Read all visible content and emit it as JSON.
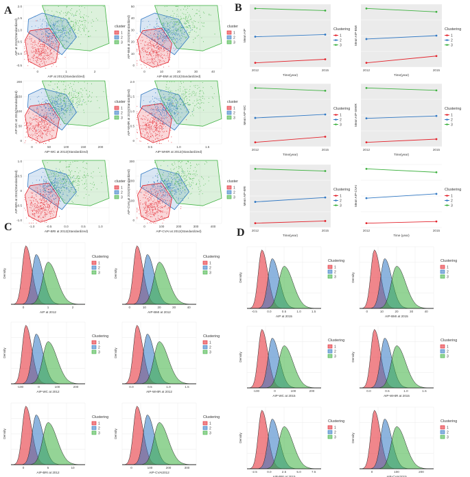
{
  "figure": {
    "panel_labels": [
      "A",
      "B",
      "C",
      "D"
    ],
    "colors": {
      "c1": "#e3222b",
      "c2": "#2f77c3",
      "c3": "#3db13f",
      "grid": "#ebebeb",
      "panelB_bg": "#ebebeb"
    }
  },
  "chart_data": [
    {
      "panel": "A",
      "type": "scatter",
      "legend_title": "cluster",
      "legend_entries": [
        "1",
        "2",
        "3"
      ],
      "subplots": [
        {
          "xlabel": "AIP at 2012(Standardized)",
          "ylabel": "AIP at 2015(Standardized)",
          "xticks": [
            "0",
            "1",
            "2"
          ],
          "yticks": [
            "2.0",
            "1.5",
            "1.0",
            "0.5",
            "0.0",
            "-0.5"
          ]
        },
        {
          "xlabel": "AIP-BMI at 2012(Standardized)",
          "ylabel": "AIP-BMI at 2015(Standardized)",
          "xticks": [
            "0",
            "10",
            "20",
            "30",
            "40"
          ],
          "yticks": [
            "50",
            "40",
            "30",
            "20",
            "10",
            "0"
          ]
        },
        {
          "xlabel": "AIP-WC at 2012(Standardized)",
          "ylabel": "AIP-WC at 2015(Standardized)",
          "xticks": [
            "0",
            "50",
            "100",
            "150",
            "200"
          ],
          "yticks": [
            "200",
            "150",
            "100",
            "50",
            "0"
          ]
        },
        {
          "xlabel": "AIP-WHtR at 2012(Standardized)",
          "ylabel": "AIP-WHtR at 2015(Standardized)",
          "xticks": [
            "0.5",
            "1.0",
            "1.5"
          ],
          "yticks": [
            "2.0",
            "1.5",
            "1.0",
            "0.5",
            "0"
          ]
        },
        {
          "xlabel": "AIP-BRI at 2012(Standardized)",
          "ylabel": "AIP-BRI at 2015(Standardized)",
          "xticks": [
            "-1.0",
            "-0.5",
            "0.0",
            "0.5",
            "1.0"
          ],
          "yticks": [
            "1.0",
            "0.5",
            "0",
            "-0.5",
            "-1.0"
          ]
        },
        {
          "xlabel": "AIP-CVAI at 2012(Standardized)",
          "ylabel": "AIP-CVAI at 2015(Standardized)",
          "xticks": [
            "0",
            "100",
            "200",
            "300",
            "400"
          ],
          "yticks": [
            "300",
            "200",
            "100",
            "0"
          ]
        }
      ]
    },
    {
      "panel": "B",
      "type": "line",
      "legend_title": "Clustering",
      "legend_entries": [
        "1",
        "2",
        "3"
      ],
      "x": [
        "2012",
        "2015"
      ],
      "subplots": [
        {
          "xlabel": "Time(year)",
          "ylabel": "Mean AIP",
          "series": [
            {
              "name": "1",
              "values": [
                0.05,
                0.1
              ]
            },
            {
              "name": "2",
              "values": [
                0.42,
                0.45
              ]
            },
            {
              "name": "3",
              "values": [
                0.82,
                0.79
              ]
            }
          ]
        },
        {
          "xlabel": "Time(year)",
          "ylabel": "Mean AIP-BMI",
          "series": [
            {
              "name": "1",
              "values": [
                5,
                7
              ]
            },
            {
              "name": "2",
              "values": [
                12,
                13
              ]
            },
            {
              "name": "3",
              "values": [
                21,
                20
              ]
            }
          ]
        },
        {
          "xlabel": "Time(year)",
          "ylabel": "Mean AIP-WC",
          "series": [
            {
              "name": "1",
              "values": [
                10,
                18
              ]
            },
            {
              "name": "2",
              "values": [
                45,
                50
              ]
            },
            {
              "name": "3",
              "values": [
                88,
                84
              ]
            }
          ]
        },
        {
          "xlabel": "Time(year)",
          "ylabel": "Mean AIP-WHtR",
          "series": [
            {
              "name": "1",
              "values": [
                0.1,
                0.14
              ]
            },
            {
              "name": "2",
              "values": [
                0.4,
                0.43
              ]
            },
            {
              "name": "3",
              "values": [
                0.78,
                0.75
              ]
            }
          ]
        },
        {
          "xlabel": "Time(year)",
          "ylabel": "Mean AIP-BRI",
          "series": [
            {
              "name": "1",
              "values": [
                0.06,
                0.09
              ]
            },
            {
              "name": "2",
              "values": [
                0.35,
                0.41
              ]
            },
            {
              "name": "3",
              "values": [
                0.8,
                0.77
              ]
            }
          ]
        },
        {
          "xlabel": "Time (year)",
          "ylabel": "Mean AIP-CVAI",
          "series": [
            {
              "name": "1",
              "values": [
                10,
                14
              ]
            },
            {
              "name": "2",
              "values": [
                68,
                78
              ]
            },
            {
              "name": "3",
              "values": [
                136,
                128
              ]
            }
          ]
        }
      ]
    },
    {
      "panel": "C",
      "type": "area",
      "legend_title": "Clustering",
      "legend_entries": [
        "1",
        "2",
        "3"
      ],
      "ylabel": "Density",
      "subplots": [
        {
          "xlabel": "AIP at 2012",
          "xticks": [
            "0",
            "1",
            "2"
          ]
        },
        {
          "xlabel": "AIP-BMI at 2012",
          "xticks": [
            "0",
            "10",
            "20",
            "30",
            "40"
          ]
        },
        {
          "xlabel": "AIP-WC at 2012",
          "xticks": [
            "-100",
            "0",
            "100",
            "200"
          ]
        },
        {
          "xlabel": "AIP-WHtR at 2012",
          "xticks": [
            "0.0",
            "0.5",
            "1.0",
            "1.5"
          ]
        },
        {
          "xlabel": "AIP-BRI at 2012",
          "xticks": [
            "0",
            "5",
            "10"
          ]
        },
        {
          "xlabel": "AIP-CVAI2012",
          "xticks": [
            "0",
            "100",
            "200",
            "300"
          ]
        }
      ]
    },
    {
      "panel": "D",
      "type": "area",
      "legend_title": "Clustering",
      "legend_entries": [
        "1",
        "2",
        "3"
      ],
      "ylabel": "Density",
      "subplots": [
        {
          "xlabel": "AIP at 2015",
          "xticks": [
            "-0.5",
            "0.0",
            "0.5",
            "1.0",
            "1.5"
          ]
        },
        {
          "xlabel": "AIP-BMI at 2015",
          "xticks": [
            "0",
            "10",
            "20",
            "30",
            "40"
          ]
        },
        {
          "xlabel": "AIP-WC at 2015",
          "xticks": [
            "-100",
            "0",
            "100",
            "200"
          ]
        },
        {
          "xlabel": "AIP-WHtR at 2015",
          "xticks": [
            "0.0",
            "0.5",
            "1.0",
            "1.5"
          ]
        },
        {
          "xlabel": "AIP-BRI at 2015",
          "xticks": [
            "-2.5",
            "0.0",
            "2.5",
            "5.0",
            "7.5"
          ]
        },
        {
          "xlabel": "AIP-CVAI2015",
          "xticks": [
            "0",
            "100",
            "200"
          ]
        }
      ]
    }
  ]
}
